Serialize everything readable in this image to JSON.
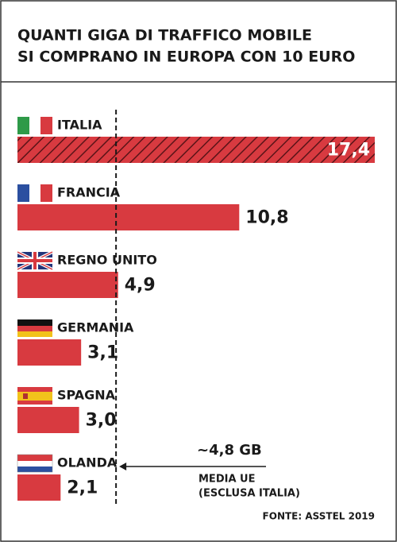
{
  "chart_data": {
    "type": "bar",
    "orientation": "horizontal",
    "title": [
      "QUANTI GIGA DI TRAFFICO MOBILE",
      "SI COMPRANO IN EUROPA CON 10 EURO"
    ],
    "categories": [
      "ITALIA",
      "FRANCIA",
      "REGNO UNITO",
      "GERMANIA",
      "SPAGNA",
      "OLANDA"
    ],
    "values": [
      17.4,
      10.8,
      4.9,
      3.1,
      3.0,
      2.1
    ],
    "value_labels": [
      "17,4",
      "10,8",
      "4,9",
      "3,1",
      "3,0",
      "2,1"
    ],
    "color": "#d83a40",
    "xlim": [
      0,
      17.4
    ],
    "reference": {
      "value": 4.8,
      "label": "~4,8 GB",
      "text": [
        "MEDIA UE",
        "(ESCLUSA ITALIA)"
      ]
    },
    "source": "FONTE: ASSTEL 2019"
  }
}
